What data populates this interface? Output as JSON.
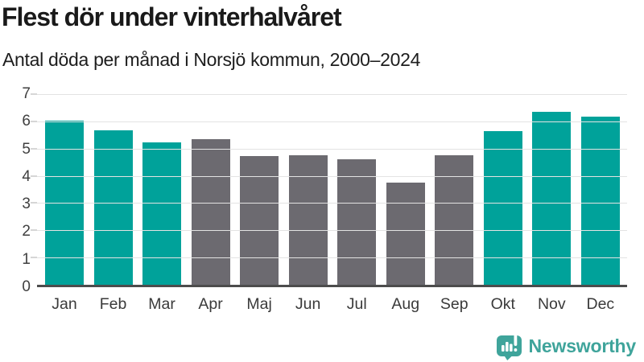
{
  "header": {
    "title": "Flest dör under vinterhalvåret",
    "subtitle": "Antal döda per månad i Norsjö kommun, 2000–2024"
  },
  "chart_data": {
    "type": "bar",
    "title": "Flest dör under vinterhalvåret",
    "subtitle": "Antal döda per månad i Norsjö kommun, 2000–2024",
    "categories": [
      "Jan",
      "Feb",
      "Mar",
      "Apr",
      "Maj",
      "Jun",
      "Jul",
      "Aug",
      "Sep",
      "Okt",
      "Nov",
      "Dec"
    ],
    "values": [
      6.04,
      5.68,
      5.24,
      5.36,
      4.72,
      4.76,
      4.6,
      3.76,
      4.76,
      5.64,
      6.36,
      6.16
    ],
    "bar_groups": [
      "winter",
      "winter",
      "winter",
      "summer",
      "summer",
      "summer",
      "summer",
      "summer",
      "summer",
      "winter",
      "winter",
      "winter"
    ],
    "group_colors": {
      "winter": "#00a29a",
      "summer": "#6c6a70"
    },
    "xlabel": "",
    "ylabel": "",
    "ylim": [
      0,
      7
    ],
    "yticks": [
      0,
      1,
      2,
      3,
      4,
      5,
      6,
      7
    ],
    "grid": true,
    "legend": "none"
  },
  "branding": {
    "name": "Newsworthy",
    "color": "#3fa49b",
    "icon": "newsworthy-speech-bubble-chart-icon"
  }
}
